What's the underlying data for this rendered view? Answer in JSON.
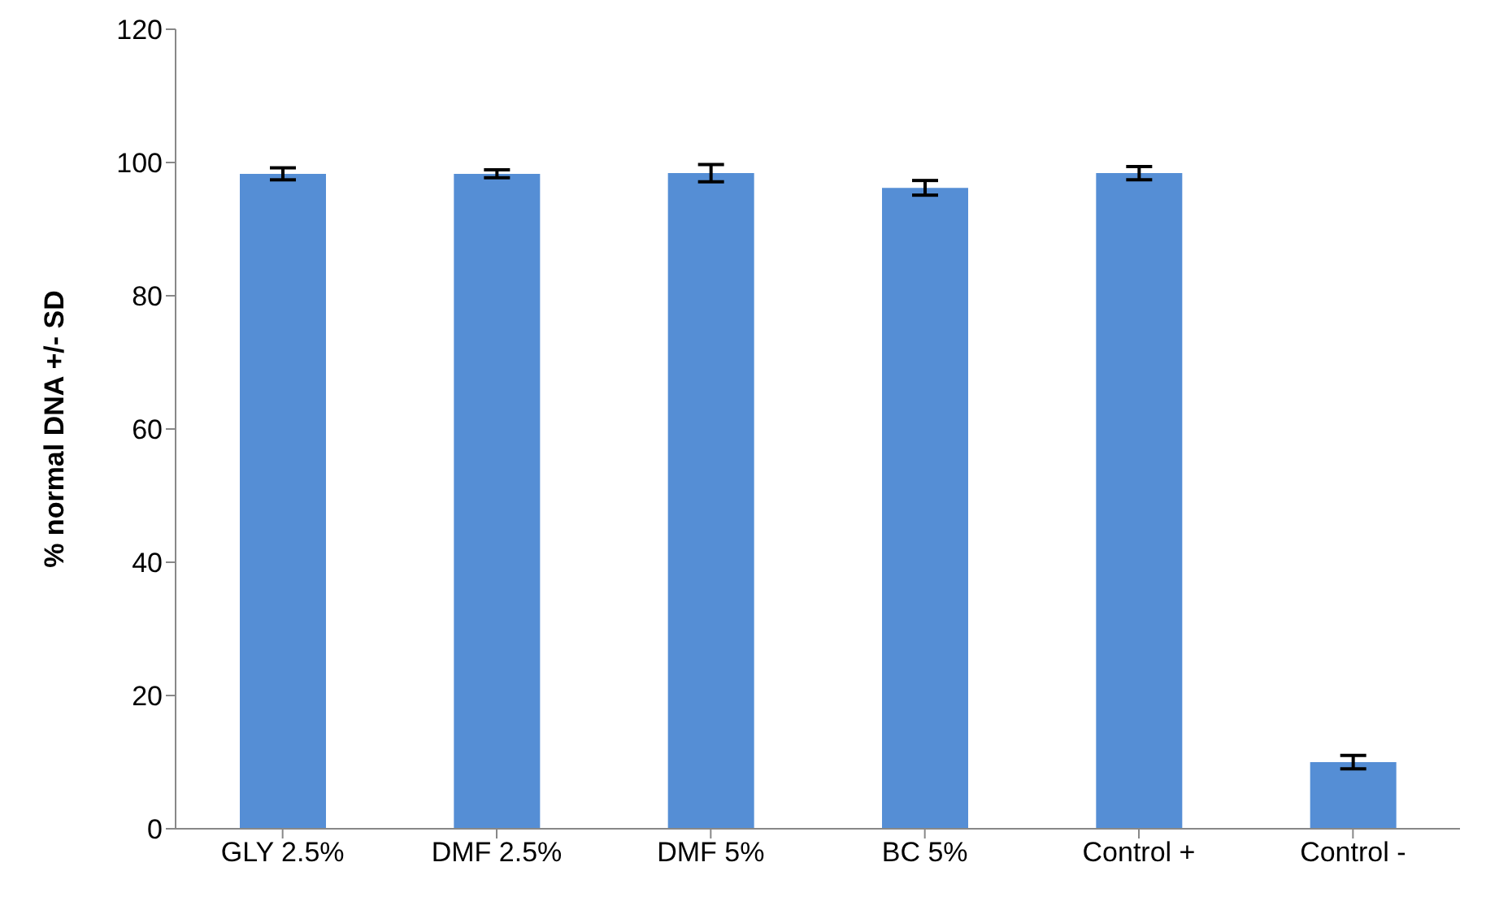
{
  "chart_data": {
    "type": "bar",
    "ylabel": "% normal DNA +/- SD",
    "categories": [
      "GLY 2.5%",
      "DMF 2.5%",
      "DMF 5%",
      "BC 5%",
      "Control +",
      "Control -"
    ],
    "series": [
      {
        "color": "#558ed5",
        "values": [
          98.3,
          98.3,
          98.4,
          96.2,
          98.4,
          10.0
        ],
        "errors": [
          0.9,
          0.6,
          1.3,
          1.1,
          1.0,
          1.0
        ]
      }
    ],
    "ylim": [
      0,
      120
    ],
    "yticks": [
      0,
      20,
      40,
      60,
      80,
      100,
      120
    ],
    "grid": false,
    "legend": false
  }
}
